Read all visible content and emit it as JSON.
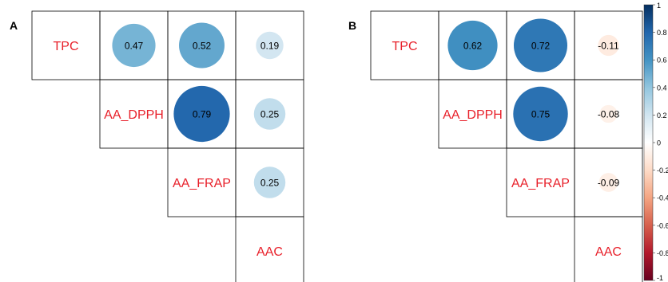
{
  "colors": {
    "label": "#e8202a",
    "grid": "#000000",
    "scale": [
      [
        -1.0,
        "#67001f"
      ],
      [
        -0.8,
        "#b2182b"
      ],
      [
        -0.6,
        "#d6604d"
      ],
      [
        -0.4,
        "#f4a582"
      ],
      [
        -0.2,
        "#fddbc7"
      ],
      [
        0.0,
        "#ffffff"
      ],
      [
        0.2,
        "#d1e5f0"
      ],
      [
        0.4,
        "#92c5de"
      ],
      [
        0.6,
        "#4393c3"
      ],
      [
        0.8,
        "#2166ac"
      ],
      [
        1.0,
        "#053061"
      ]
    ]
  },
  "chart_data": [
    {
      "type": "heatmap",
      "panel_label": "A",
      "variables": [
        "TPC",
        "AA_DPPH",
        "AA_FRAP",
        "AAC"
      ],
      "shape": "upper-triangle circles",
      "cells": [
        {
          "row": "TPC",
          "col": "AA_DPPH",
          "value": 0.47
        },
        {
          "row": "TPC",
          "col": "AA_FRAP",
          "value": 0.52
        },
        {
          "row": "TPC",
          "col": "AAC",
          "value": 0.19
        },
        {
          "row": "AA_DPPH",
          "col": "AA_FRAP",
          "value": 0.79
        },
        {
          "row": "AA_DPPH",
          "col": "AAC",
          "value": 0.25
        },
        {
          "row": "AA_FRAP",
          "col": "AAC",
          "value": 0.25
        }
      ]
    },
    {
      "type": "heatmap",
      "panel_label": "B",
      "variables": [
        "TPC",
        "AA_DPPH",
        "AA_FRAP",
        "AAC"
      ],
      "shape": "upper-triangle circles",
      "cells": [
        {
          "row": "TPC",
          "col": "AA_DPPH",
          "value": 0.62
        },
        {
          "row": "TPC",
          "col": "AA_FRAP",
          "value": 0.72
        },
        {
          "row": "TPC",
          "col": "AAC",
          "value": -0.11
        },
        {
          "row": "AA_DPPH",
          "col": "AA_FRAP",
          "value": 0.75
        },
        {
          "row": "AA_DPPH",
          "col": "AAC",
          "value": -0.08
        },
        {
          "row": "AA_FRAP",
          "col": "AAC",
          "value": -0.09
        }
      ]
    },
    {
      "type": "colorbar",
      "range": [
        -1,
        1
      ],
      "ticks": [
        "1",
        "0.8",
        "0.6",
        "0.4",
        "0.2",
        "0",
        "-0.2",
        "-0.4",
        "-0.6",
        "-0.8",
        "-1"
      ],
      "tick_values": [
        1,
        0.8,
        0.6,
        0.4,
        0.2,
        0,
        -0.2,
        -0.4,
        -0.6,
        -0.8,
        -1
      ]
    }
  ]
}
